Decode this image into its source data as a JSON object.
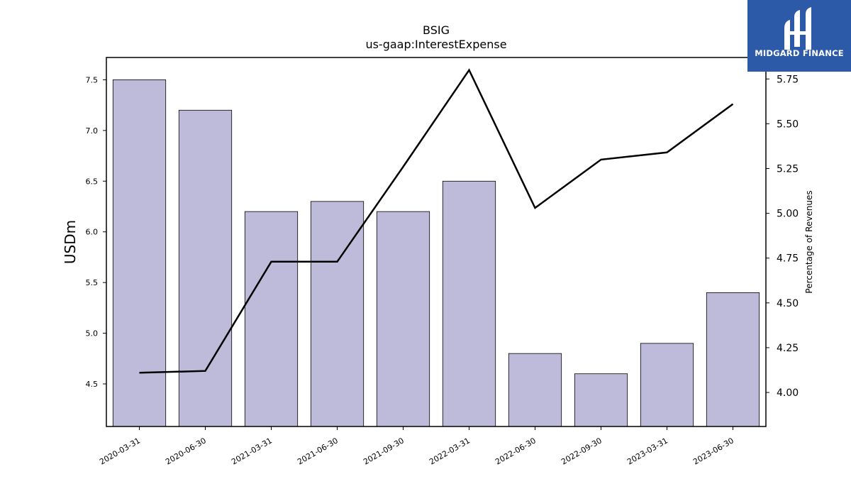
{
  "chart_data": {
    "type": "bar",
    "title": "BSIG",
    "subtitle": "us-gaap:InterestExpense",
    "ylabel": "USDm",
    "y2label": "Percentage of Revenues",
    "categories": [
      "2020-03-31",
      "2020-06-30",
      "2021-03-31",
      "2021-06-30",
      "2021-09-30",
      "2022-03-31",
      "2022-06-30",
      "2022-09-30",
      "2023-03-31",
      "2023-06-30"
    ],
    "series": [
      {
        "type": "bar",
        "axis": "left",
        "values": [
          7.5,
          7.2,
          6.2,
          6.3,
          6.2,
          6.5,
          4.8,
          4.6,
          4.9,
          5.4
        ]
      },
      {
        "type": "line",
        "axis": "right",
        "values": [
          4.11,
          4.12,
          4.73,
          4.73,
          5.26,
          5.8,
          5.03,
          5.3,
          5.34,
          5.61
        ]
      }
    ],
    "ylim": [
      4.08,
      7.72
    ],
    "y2lim": [
      3.81,
      5.87
    ],
    "yticks": [
      "4.5",
      "5.0",
      "5.5",
      "6.0",
      "6.5",
      "7.0",
      "7.5"
    ],
    "y2ticks": [
      "4.00",
      "4.25",
      "4.50",
      "4.75",
      "5.00",
      "5.25",
      "5.50",
      "5.75"
    ],
    "bar_color": "#bebbda",
    "line_color": "#000000",
    "grid": false,
    "legend": "none"
  },
  "logo": {
    "text": "MIDGARD FINANCE",
    "background": "#2d5aa8"
  }
}
